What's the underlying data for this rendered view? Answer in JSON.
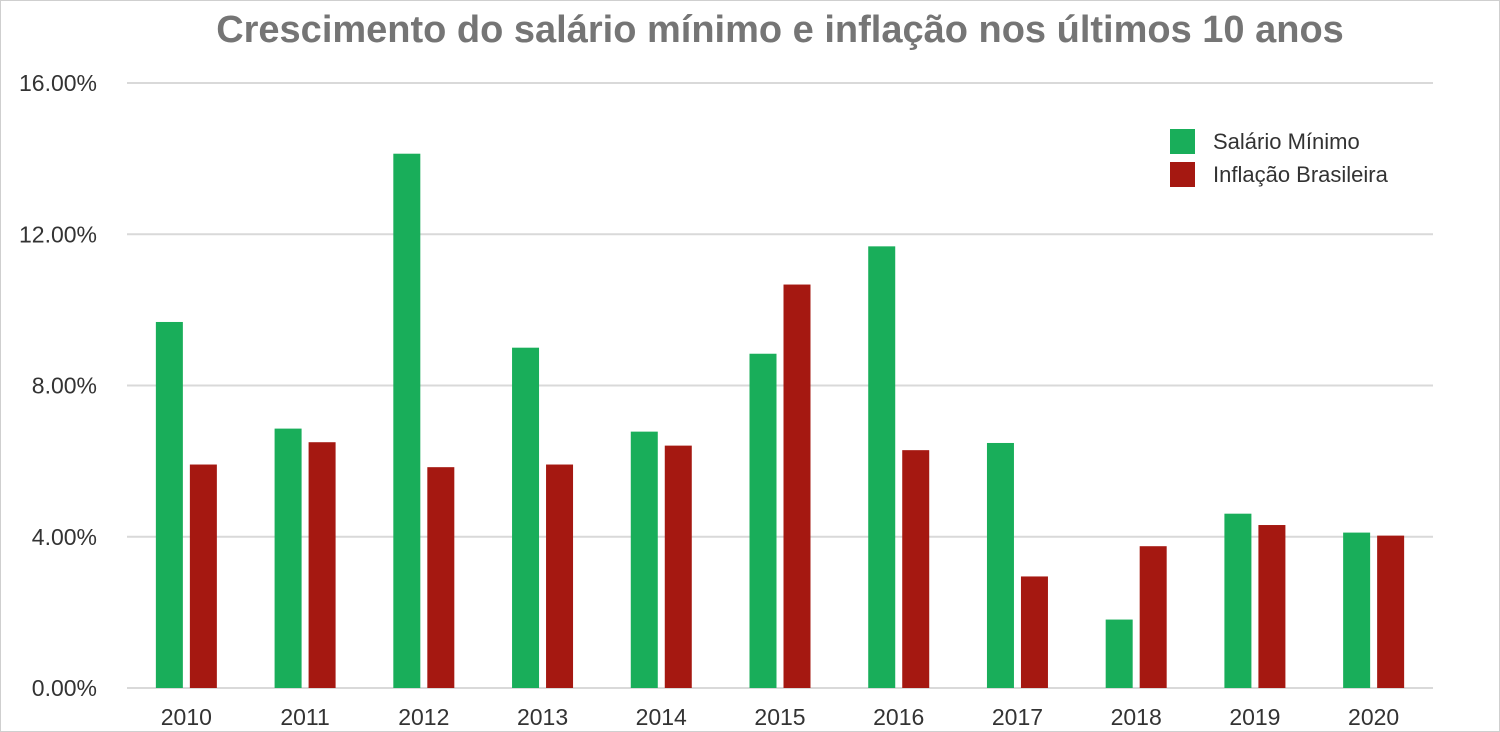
{
  "chart_data": {
    "type": "bar",
    "title": "Crescimento do salário mínimo e inflação nos últimos 10 anos",
    "categories": [
      "2010",
      "2011",
      "2012",
      "2013",
      "2014",
      "2015",
      "2016",
      "2017",
      "2018",
      "2019",
      "2020"
    ],
    "series": [
      {
        "name": "Salário Mínimo",
        "color": "#19ae5a",
        "values": [
          9.68,
          6.86,
          14.13,
          9.0,
          6.78,
          8.84,
          11.68,
          6.48,
          1.81,
          4.61,
          4.11
        ]
      },
      {
        "name": "Inflação Brasileira",
        "color": "#a51811",
        "values": [
          5.91,
          6.5,
          5.84,
          5.91,
          6.41,
          10.67,
          6.29,
          2.95,
          3.75,
          4.31,
          4.03
        ]
      }
    ],
    "y_ticks": [
      "0.00%",
      "4.00%",
      "8.00%",
      "12.00%",
      "16.00%"
    ],
    "ylim": [
      0,
      16
    ],
    "xlabel": "",
    "ylabel": "",
    "grid": true,
    "legend_position": "top-right"
  }
}
